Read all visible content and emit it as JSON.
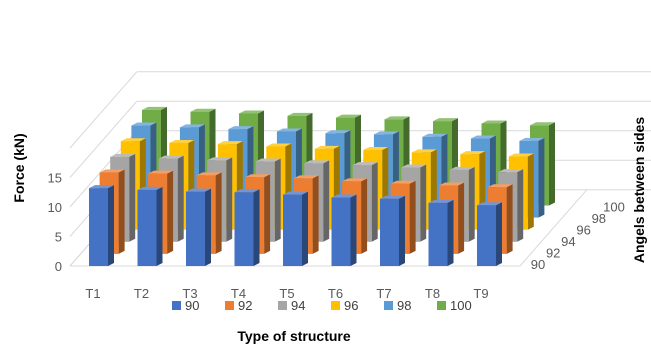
{
  "chart_data": {
    "type": "bar",
    "subtype": "3d-column",
    "title": "",
    "xlabel": "Type of structure",
    "ylabel": "Force (kN)",
    "zlabel": "Angels between sides",
    "categories": [
      "T1",
      "T2",
      "T3",
      "T4",
      "T5",
      "T6",
      "T7",
      "T8",
      "T9"
    ],
    "yticks": [
      "0",
      "5",
      "10",
      "15"
    ],
    "ylim": [
      0,
      20
    ],
    "grid": true,
    "legend_position": "bottom",
    "series": [
      {
        "name": "90",
        "color": "#4472C4",
        "values": [
          13.2,
          12.9,
          12.6,
          12.5,
          12.1,
          11.6,
          11.4,
          10.7,
          10.3
        ]
      },
      {
        "name": "92",
        "color": "#ED7D31",
        "values": [
          13.8,
          13.6,
          13.3,
          13.0,
          12.8,
          12.3,
          11.9,
          11.6,
          11.3
        ]
      },
      {
        "name": "94",
        "color": "#A5A5A5",
        "values": [
          14.4,
          14.1,
          13.8,
          13.6,
          13.3,
          13.0,
          12.6,
          12.2,
          11.8
        ]
      },
      {
        "name": "96",
        "color": "#FFC000",
        "values": [
          15.0,
          14.7,
          14.5,
          14.1,
          13.7,
          13.5,
          13.1,
          12.8,
          12.4
        ]
      },
      {
        "name": "98",
        "color": "#5B9BD5",
        "values": [
          15.6,
          15.3,
          15.0,
          14.6,
          14.3,
          14.1,
          13.7,
          13.4,
          13.0
        ]
      },
      {
        "name": "100",
        "color": "#70AD47",
        "values": [
          16.2,
          15.9,
          15.6,
          15.2,
          14.9,
          14.6,
          14.3,
          13.9,
          13.6
        ]
      }
    ]
  }
}
